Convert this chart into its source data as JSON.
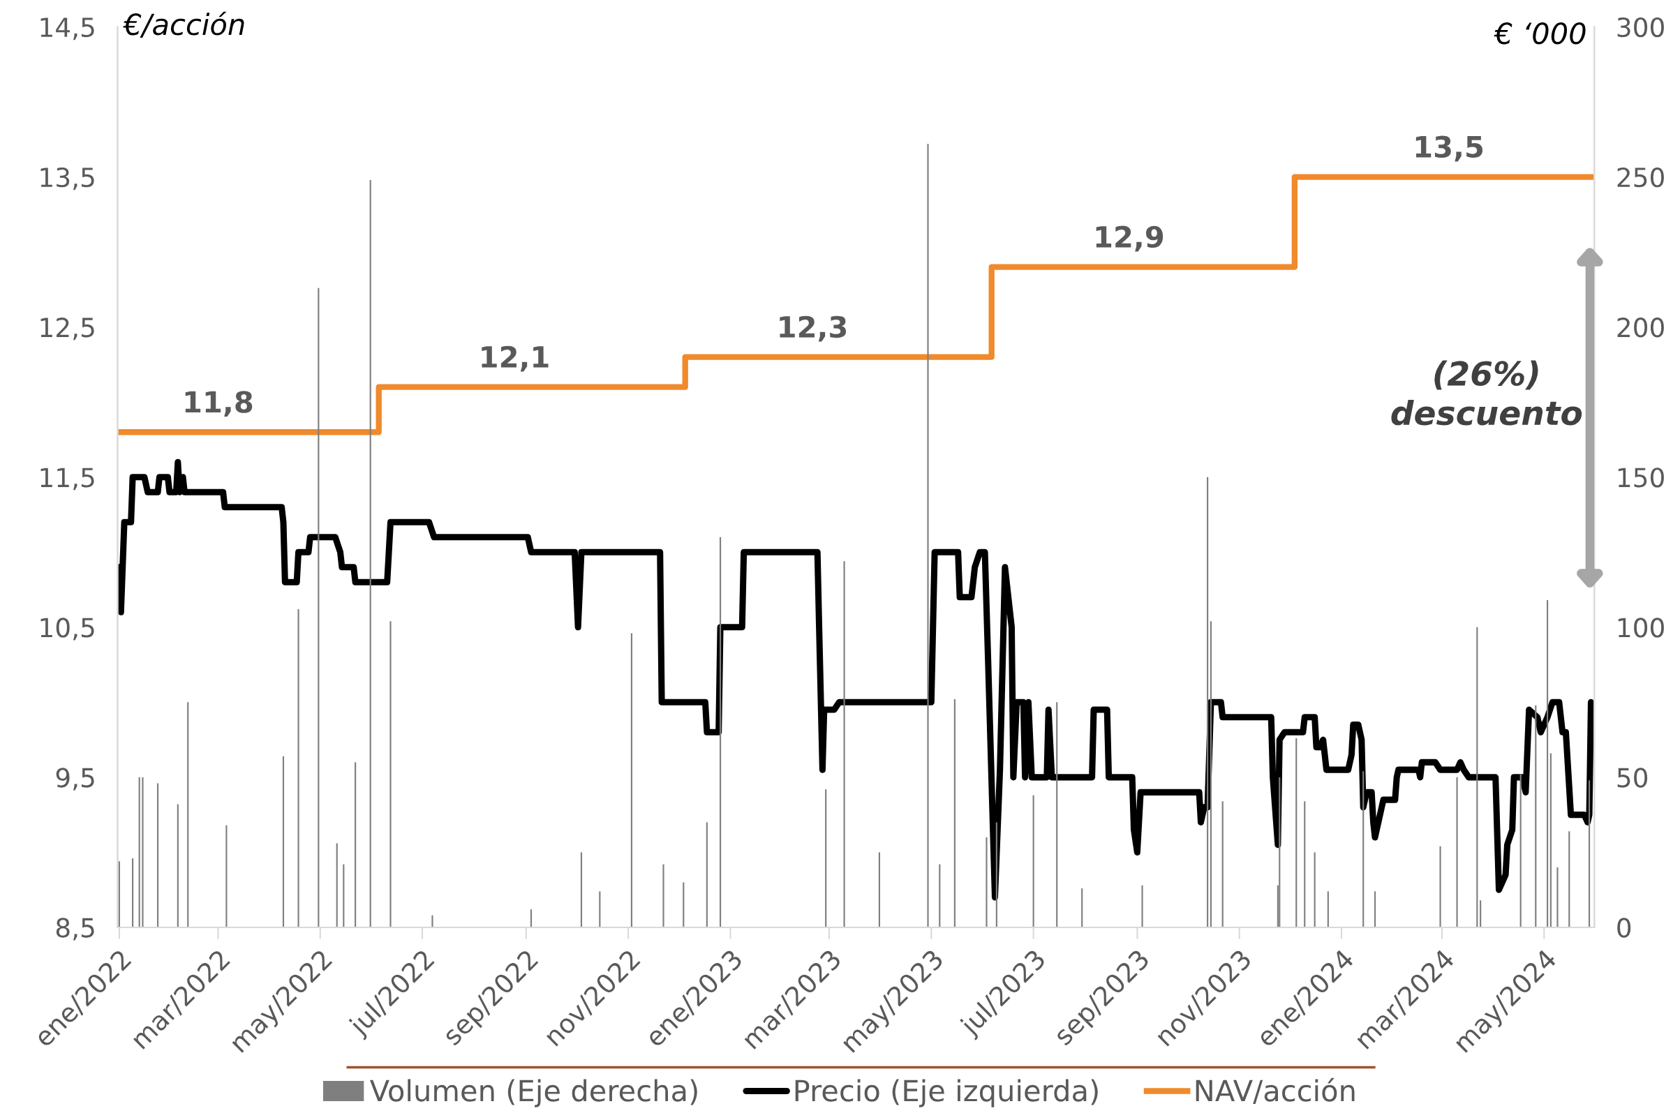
{
  "chart_data": {
    "type": "line",
    "ylabel": "€/acción",
    "y2label": "€ ‘000",
    "xlim": [
      "2021-12-31",
      "2024-05-31"
    ],
    "xticks": [
      {
        "value": "2022-01-01",
        "label": "ene/2022"
      },
      {
        "value": "2022-03-01",
        "label": "mar/2022"
      },
      {
        "value": "2022-05-01",
        "label": "may/2022"
      },
      {
        "value": "2022-07-01",
        "label": "jul/2022"
      },
      {
        "value": "2022-09-01",
        "label": "sep/2022"
      },
      {
        "value": "2022-11-01",
        "label": "nov/2022"
      },
      {
        "value": "2023-01-01",
        "label": "ene/2023"
      },
      {
        "value": "2023-03-01",
        "label": "mar/2023"
      },
      {
        "value": "2023-05-01",
        "label": "may/2023"
      },
      {
        "value": "2023-07-01",
        "label": "jul/2023"
      },
      {
        "value": "2023-09-01",
        "label": "sep/2023"
      },
      {
        "value": "2023-11-01",
        "label": "nov/2023"
      },
      {
        "value": "2024-01-01",
        "label": "ene/2024"
      },
      {
        "value": "2024-03-01",
        "label": "mar/2024"
      },
      {
        "value": "2024-05-01",
        "label": "may/2024"
      }
    ],
    "ylim": [
      8.5,
      14.5
    ],
    "yticks": [
      {
        "value": 8.5,
        "label": "8,5"
      },
      {
        "value": 9.5,
        "label": "9,5"
      },
      {
        "value": 10.5,
        "label": "10,5"
      },
      {
        "value": 11.5,
        "label": "11,5"
      },
      {
        "value": 12.5,
        "label": "12,5"
      },
      {
        "value": 13.5,
        "label": "13,5"
      },
      {
        "value": 14.5,
        "label": "14,5"
      }
    ],
    "y2lim": [
      0,
      300
    ],
    "y2ticks": [
      0,
      50,
      100,
      150,
      200,
      250,
      300
    ],
    "legend": "bottom",
    "grid": false,
    "annotations": [
      "(26%)\ndescuento",
      {
        "text": "11,8",
        "x": "2022-03-01",
        "y": 11.8
      },
      {
        "text": "12,1",
        "x": "2022-08-25",
        "y": 12.1
      },
      {
        "text": "12,3",
        "x": "2023-02-19",
        "y": 12.3
      },
      {
        "text": "12,9",
        "x": "2023-08-27",
        "y": 12.9
      },
      {
        "text": "13,5",
        "x": "2024-03-05",
        "y": 13.5
      }
    ],
    "series": [
      {
        "name": "Volumen (Eje derecha)",
        "type": "bar",
        "axis": "y2",
        "color": "#7f7f7f",
        "x": [
          "2022-01-01",
          "2022-01-09",
          "2022-01-13",
          "2022-01-15",
          "2022-01-24",
          "2022-02-05",
          "2022-02-11",
          "2022-03-06",
          "2022-04-09",
          "2022-04-18",
          "2022-04-30",
          "2022-05-11",
          "2022-05-15",
          "2022-05-22",
          "2022-05-31",
          "2022-06-12",
          "2022-07-07",
          "2022-09-04",
          "2022-10-04",
          "2022-10-15",
          "2022-11-03",
          "2022-11-22",
          "2022-12-04",
          "2022-12-18",
          "2022-12-26",
          "2023-02-27",
          "2023-03-10",
          "2023-03-31",
          "2023-04-29",
          "2023-05-06",
          "2023-05-15",
          "2023-06-03",
          "2023-06-09",
          "2023-07-01",
          "2023-07-15",
          "2023-07-30",
          "2023-09-04",
          "2023-10-13",
          "2023-10-15",
          "2023-10-22",
          "2023-11-24",
          "2023-11-25",
          "2023-12-05",
          "2023-12-10",
          "2023-12-16",
          "2023-12-24",
          "2024-01-14",
          "2024-01-21",
          "2024-02-29",
          "2024-03-10",
          "2024-03-22",
          "2024-03-24",
          "2024-04-17",
          "2024-04-26",
          "2024-05-03",
          "2024-05-05",
          "2024-05-09",
          "2024-05-16",
          "2024-05-28"
        ],
        "values": [
          22,
          23,
          50,
          50,
          48,
          41,
          75,
          34,
          57,
          106,
          213,
          28,
          21,
          55,
          249,
          102,
          4,
          6,
          25,
          12,
          98,
          21,
          15,
          35,
          130,
          46,
          122,
          25,
          261,
          21,
          76,
          30,
          35,
          44,
          75,
          13,
          14,
          150,
          102,
          42,
          14,
          50,
          63,
          42,
          25,
          12,
          52,
          12,
          27,
          50,
          100,
          9,
          51,
          74,
          109,
          58,
          20,
          32,
          49
        ]
      },
      {
        "name": "Precio (Eje izquierda)",
        "color": "#000000",
        "x": [
          "2022-01-01",
          "2022-01-02",
          "2022-01-04",
          "2022-01-08",
          "2022-01-09",
          "2022-01-16",
          "2022-01-18",
          "2022-01-24",
          "2022-01-25",
          "2022-01-30",
          "2022-01-31",
          "2022-02-04",
          "2022-02-05",
          "2022-02-06",
          "2022-02-08",
          "2022-02-09",
          "2022-03-04",
          "2022-03-05",
          "2022-04-08",
          "2022-04-09",
          "2022-04-10",
          "2022-04-17",
          "2022-04-18",
          "2022-04-24",
          "2022-04-25",
          "2022-05-10",
          "2022-05-13",
          "2022-05-14",
          "2022-05-21",
          "2022-05-22",
          "2022-06-10",
          "2022-06-12",
          "2022-07-05",
          "2022-07-08",
          "2022-09-02",
          "2022-09-04",
          "2022-09-30",
          "2022-10-02",
          "2022-10-04",
          "2022-11-20",
          "2022-11-21",
          "2022-12-17",
          "2022-12-18",
          "2022-12-25",
          "2022-12-26",
          "2023-01-08",
          "2023-01-09",
          "2023-02-22",
          "2023-02-23",
          "2023-02-25",
          "2023-02-26",
          "2023-03-04",
          "2023-03-07",
          "2023-05-01",
          "2023-05-03",
          "2023-05-17",
          "2023-05-18",
          "2023-05-25",
          "2023-05-27",
          "2023-05-30",
          "2023-06-02",
          "2023-06-04",
          "2023-06-08",
          "2023-06-11",
          "2023-06-14",
          "2023-06-18",
          "2023-06-19",
          "2023-06-21",
          "2023-06-25",
          "2023-06-26",
          "2023-06-28",
          "2023-06-30",
          "2023-07-09",
          "2023-07-10",
          "2023-07-12",
          "2023-08-05",
          "2023-08-06",
          "2023-08-14",
          "2023-08-15",
          "2023-08-29",
          "2023-08-30",
          "2023-09-01",
          "2023-09-03",
          "2023-10-08",
          "2023-10-09",
          "2023-10-11",
          "2023-10-13",
          "2023-10-15",
          "2023-10-21",
          "2023-10-22",
          "2023-11-20",
          "2023-11-21",
          "2023-11-24",
          "2023-11-25",
          "2023-11-28",
          "2023-12-09",
          "2023-12-10",
          "2023-12-16",
          "2023-12-17",
          "2023-12-19",
          "2023-12-21",
          "2023-12-23",
          "2024-01-05",
          "2024-01-07",
          "2024-01-08",
          "2024-01-11",
          "2024-01-13",
          "2024-01-14",
          "2024-01-16",
          "2024-01-19",
          "2024-01-20",
          "2024-01-21",
          "2024-01-26",
          "2024-02-02",
          "2024-02-03",
          "2024-02-04",
          "2024-02-16",
          "2024-02-17",
          "2024-02-18",
          "2024-02-26",
          "2024-02-29",
          "2024-03-10",
          "2024-03-12",
          "2024-03-14",
          "2024-03-17",
          "2024-04-02",
          "2024-04-04",
          "2024-04-08",
          "2024-04-09",
          "2024-04-12",
          "2024-04-13",
          "2024-04-18",
          "2024-04-20",
          "2024-04-22",
          "2024-04-27",
          "2024-04-29",
          "2024-05-03",
          "2024-05-06",
          "2024-05-10",
          "2024-05-12",
          "2024-05-14",
          "2024-05-17",
          "2024-05-25",
          "2024-05-27",
          "2024-05-28",
          "2024-05-29"
        ],
        "values": [
          10.9,
          10.6,
          11.2,
          11.2,
          11.5,
          11.5,
          11.4,
          11.4,
          11.5,
          11.5,
          11.4,
          11.4,
          11.6,
          11.4,
          11.5,
          11.4,
          11.4,
          11.3,
          11.3,
          11.2,
          10.8,
          10.8,
          11.0,
          11.0,
          11.1,
          11.1,
          11.0,
          10.9,
          10.9,
          10.8,
          10.8,
          11.2,
          11.2,
          11.1,
          11.1,
          11.0,
          11.0,
          10.5,
          11.0,
          11.0,
          10.0,
          10.0,
          9.8,
          9.8,
          10.5,
          10.5,
          11.0,
          11.0,
          10.5,
          9.55,
          9.95,
          9.95,
          10.0,
          10.0,
          11.0,
          11.0,
          10.7,
          10.7,
          10.9,
          11.0,
          11.0,
          10.25,
          8.7,
          9.55,
          10.9,
          10.5,
          9.5,
          10.0,
          10.0,
          9.5,
          10.0,
          9.5,
          9.5,
          9.95,
          9.5,
          9.5,
          9.95,
          9.95,
          9.5,
          9.5,
          9.15,
          9.0,
          9.4,
          9.4,
          9.2,
          9.3,
          9.3,
          10.0,
          10.0,
          9.9,
          9.9,
          9.5,
          9.05,
          9.75,
          9.8,
          9.8,
          9.9,
          9.9,
          9.7,
          9.7,
          9.75,
          9.55,
          9.55,
          9.65,
          9.85,
          9.85,
          9.75,
          9.3,
          9.4,
          9.4,
          9.2,
          9.1,
          9.35,
          9.35,
          9.5,
          9.55,
          9.55,
          9.5,
          9.6,
          9.6,
          9.55,
          9.55,
          9.6,
          9.55,
          9.5,
          9.5,
          8.75,
          8.85,
          9.05,
          9.15,
          9.5,
          9.5,
          9.4,
          9.95,
          9.9,
          9.8,
          9.9,
          10.0,
          10.0,
          9.8,
          9.8,
          9.25,
          9.25,
          9.2,
          9.25,
          10.0
        ]
      },
      {
        "name": "NAV/acción",
        "type": "step",
        "color": "#f08a2c",
        "x": [
          "2022-01-01",
          "2022-06-05",
          "2022-12-05",
          "2023-06-06",
          "2023-12-04",
          "2024-05-29"
        ],
        "values": [
          11.8,
          12.1,
          12.3,
          12.9,
          13.5,
          13.5
        ]
      }
    ]
  }
}
